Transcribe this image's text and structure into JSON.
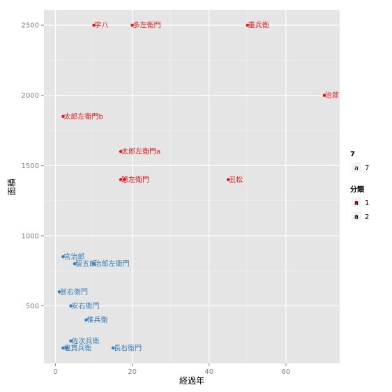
{
  "chart_data": {
    "type": "scatter",
    "xlabel": "経過年",
    "ylabel": "面積",
    "xlim": [
      -3,
      74
    ],
    "ylim": [
      90,
      2610
    ],
    "x_ticks": [
      0,
      20,
      40,
      60
    ],
    "x_tick_labels": [
      "0",
      "20",
      "40",
      "60"
    ],
    "y_ticks": [
      500,
      1000,
      1500,
      2000,
      2500
    ],
    "y_tick_labels": [
      "500",
      "1000",
      "1500",
      "2000",
      "2500"
    ],
    "grid": true,
    "legend_position": "right",
    "legends": [
      {
        "title": "7",
        "entries": [
          {
            "key": "a",
            "label": "7"
          }
        ]
      },
      {
        "title": "分類",
        "entries": [
          {
            "key": "a",
            "label": "1",
            "color": "#e41a1c"
          },
          {
            "key": "a",
            "label": "2",
            "color": "#377eb8"
          }
        ]
      }
    ],
    "colors": {
      "1": "#e41a1c",
      "2": "#377eb8"
    },
    "points": [
      {
        "x": 10,
        "y": 2500,
        "label": "宇八",
        "group": "1"
      },
      {
        "x": 20,
        "y": 2500,
        "label": "多左衛門",
        "group": "1"
      },
      {
        "x": 50,
        "y": 2500,
        "label": "重兵衛",
        "group": "1"
      },
      {
        "x": 70,
        "y": 2000,
        "label": "治郎",
        "group": "1"
      },
      {
        "x": 2,
        "y": 1850,
        "label": "太郎左衛門b",
        "group": "1"
      },
      {
        "x": 17,
        "y": 1600,
        "label": "太郎左衛門a",
        "group": "1"
      },
      {
        "x": 17,
        "y": 1400,
        "label": "惣左衛門",
        "group": "1"
      },
      {
        "x": 18,
        "y": 1400,
        "label": "",
        "group": "1"
      },
      {
        "x": 45,
        "y": 1400,
        "label": "丑松",
        "group": "1"
      },
      {
        "x": 2,
        "y": 850,
        "label": "宮治郎",
        "group": "2"
      },
      {
        "x": 5,
        "y": 800,
        "label": "留五郎",
        "group": "2"
      },
      {
        "x": 10,
        "y": 800,
        "label": "治郎左衛門",
        "group": "2"
      },
      {
        "x": 1,
        "y": 600,
        "label": "甚右衛門",
        "group": "2"
      },
      {
        "x": 4,
        "y": 500,
        "label": "安右衛門",
        "group": "2"
      },
      {
        "x": 8,
        "y": 400,
        "label": "惟兵衛",
        "group": "2"
      },
      {
        "x": 4,
        "y": 250,
        "label": "佐次兵衛",
        "group": "2"
      },
      {
        "x": 2,
        "y": 200,
        "label": "塩貫兵衛",
        "group": "2"
      },
      {
        "x": 3,
        "y": 200,
        "label": "",
        "group": "2"
      },
      {
        "x": 15,
        "y": 200,
        "label": "長右衛門",
        "group": "2"
      }
    ]
  }
}
